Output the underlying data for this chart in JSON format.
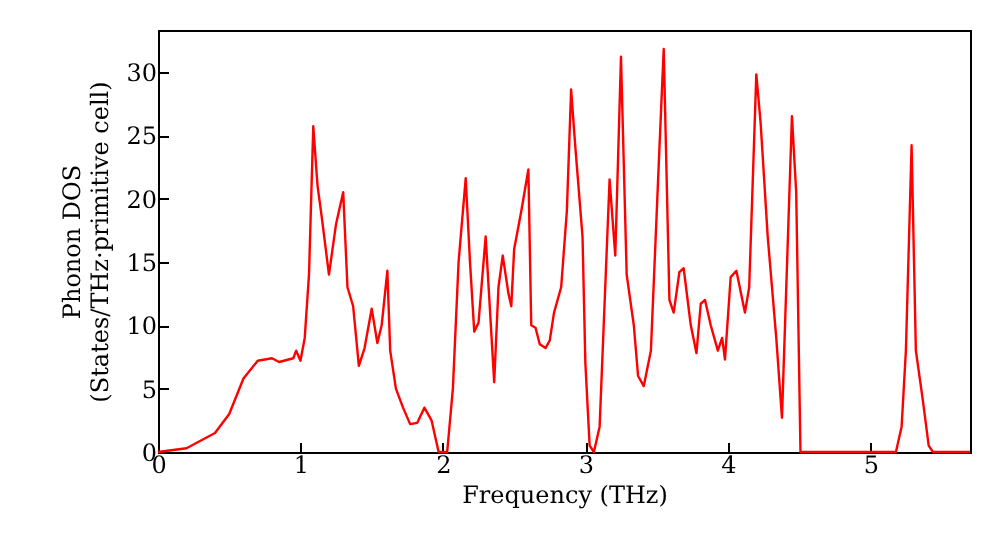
{
  "chart_data": {
    "type": "line",
    "xlabel": "Frequency (THz)",
    "ylabel": "Phonon DOS\n(States/THz·primitive cell)",
    "xlim": [
      0,
      5.7
    ],
    "ylim": [
      0,
      33.3
    ],
    "xticks": [
      0,
      1,
      2,
      3,
      4,
      5
    ],
    "yticks": [
      0,
      5,
      10,
      15,
      20,
      25,
      30
    ],
    "grid": false,
    "marker": "none",
    "line_style": "solid",
    "series": [
      {
        "color": "#ff0000",
        "x": [
          0,
          0.2,
          0.4,
          0.5,
          0.6,
          0.7,
          0.8,
          0.85,
          0.95,
          0.97,
          1.0,
          1.03,
          1.06,
          1.09,
          1.12,
          1.15,
          1.2,
          1.25,
          1.3,
          1.33,
          1.37,
          1.41,
          1.45,
          1.5,
          1.54,
          1.57,
          1.61,
          1.63,
          1.67,
          1.72,
          1.77,
          1.82,
          1.87,
          1.92,
          1.97,
          2.03,
          2.07,
          2.11,
          2.16,
          2.19,
          2.22,
          2.25,
          2.3,
          2.36,
          2.39,
          2.42,
          2.46,
          2.48,
          2.5,
          2.55,
          2.6,
          2.62,
          2.65,
          2.68,
          2.72,
          2.75,
          2.78,
          2.83,
          2.87,
          2.9,
          2.93,
          2.98,
          3.0,
          3.03,
          3.06,
          3.1,
          3.17,
          3.21,
          3.25,
          3.29,
          3.34,
          3.37,
          3.41,
          3.46,
          3.52,
          3.55,
          3.59,
          3.62,
          3.66,
          3.69,
          3.74,
          3.78,
          3.81,
          3.84,
          3.88,
          3.93,
          3.96,
          3.98,
          4.02,
          4.06,
          4.12,
          4.15,
          4.2,
          4.23,
          4.28,
          4.34,
          4.38,
          4.45,
          4.48,
          4.51,
          5.18,
          5.22,
          5.25,
          5.29,
          5.32,
          5.37,
          5.41,
          5.44,
          5.7
        ],
        "values": [
          0,
          0.3,
          1.5,
          3,
          5.8,
          7.2,
          7.4,
          7.1,
          7.4,
          8,
          7.2,
          9,
          14,
          25.7,
          21,
          18.5,
          14,
          18,
          20.5,
          13,
          11.5,
          6.8,
          8.2,
          11.3,
          8.6,
          10,
          14.3,
          8,
          5,
          3.5,
          2.2,
          2.3,
          3.5,
          2.5,
          0,
          0,
          5,
          15,
          21.6,
          15,
          9.5,
          10.2,
          17,
          5.5,
          13,
          15.5,
          12.5,
          11.5,
          16,
          19,
          22.3,
          10,
          9.8,
          8.5,
          8.2,
          8.8,
          11,
          13,
          19,
          28.6,
          24,
          17,
          7,
          0.5,
          0,
          2,
          21.5,
          15.5,
          31.2,
          14,
          10,
          6,
          5.2,
          8,
          24,
          31.8,
          12,
          11,
          14.2,
          14.5,
          10,
          7.8,
          11.7,
          12,
          10,
          8,
          9,
          7.3,
          13.8,
          14.3,
          11,
          13,
          29.8,
          26,
          17,
          9,
          2.7,
          26.5,
          20.5,
          0,
          0,
          2,
          8,
          24.2,
          8,
          4,
          0.5,
          0,
          0
        ]
      }
    ]
  }
}
